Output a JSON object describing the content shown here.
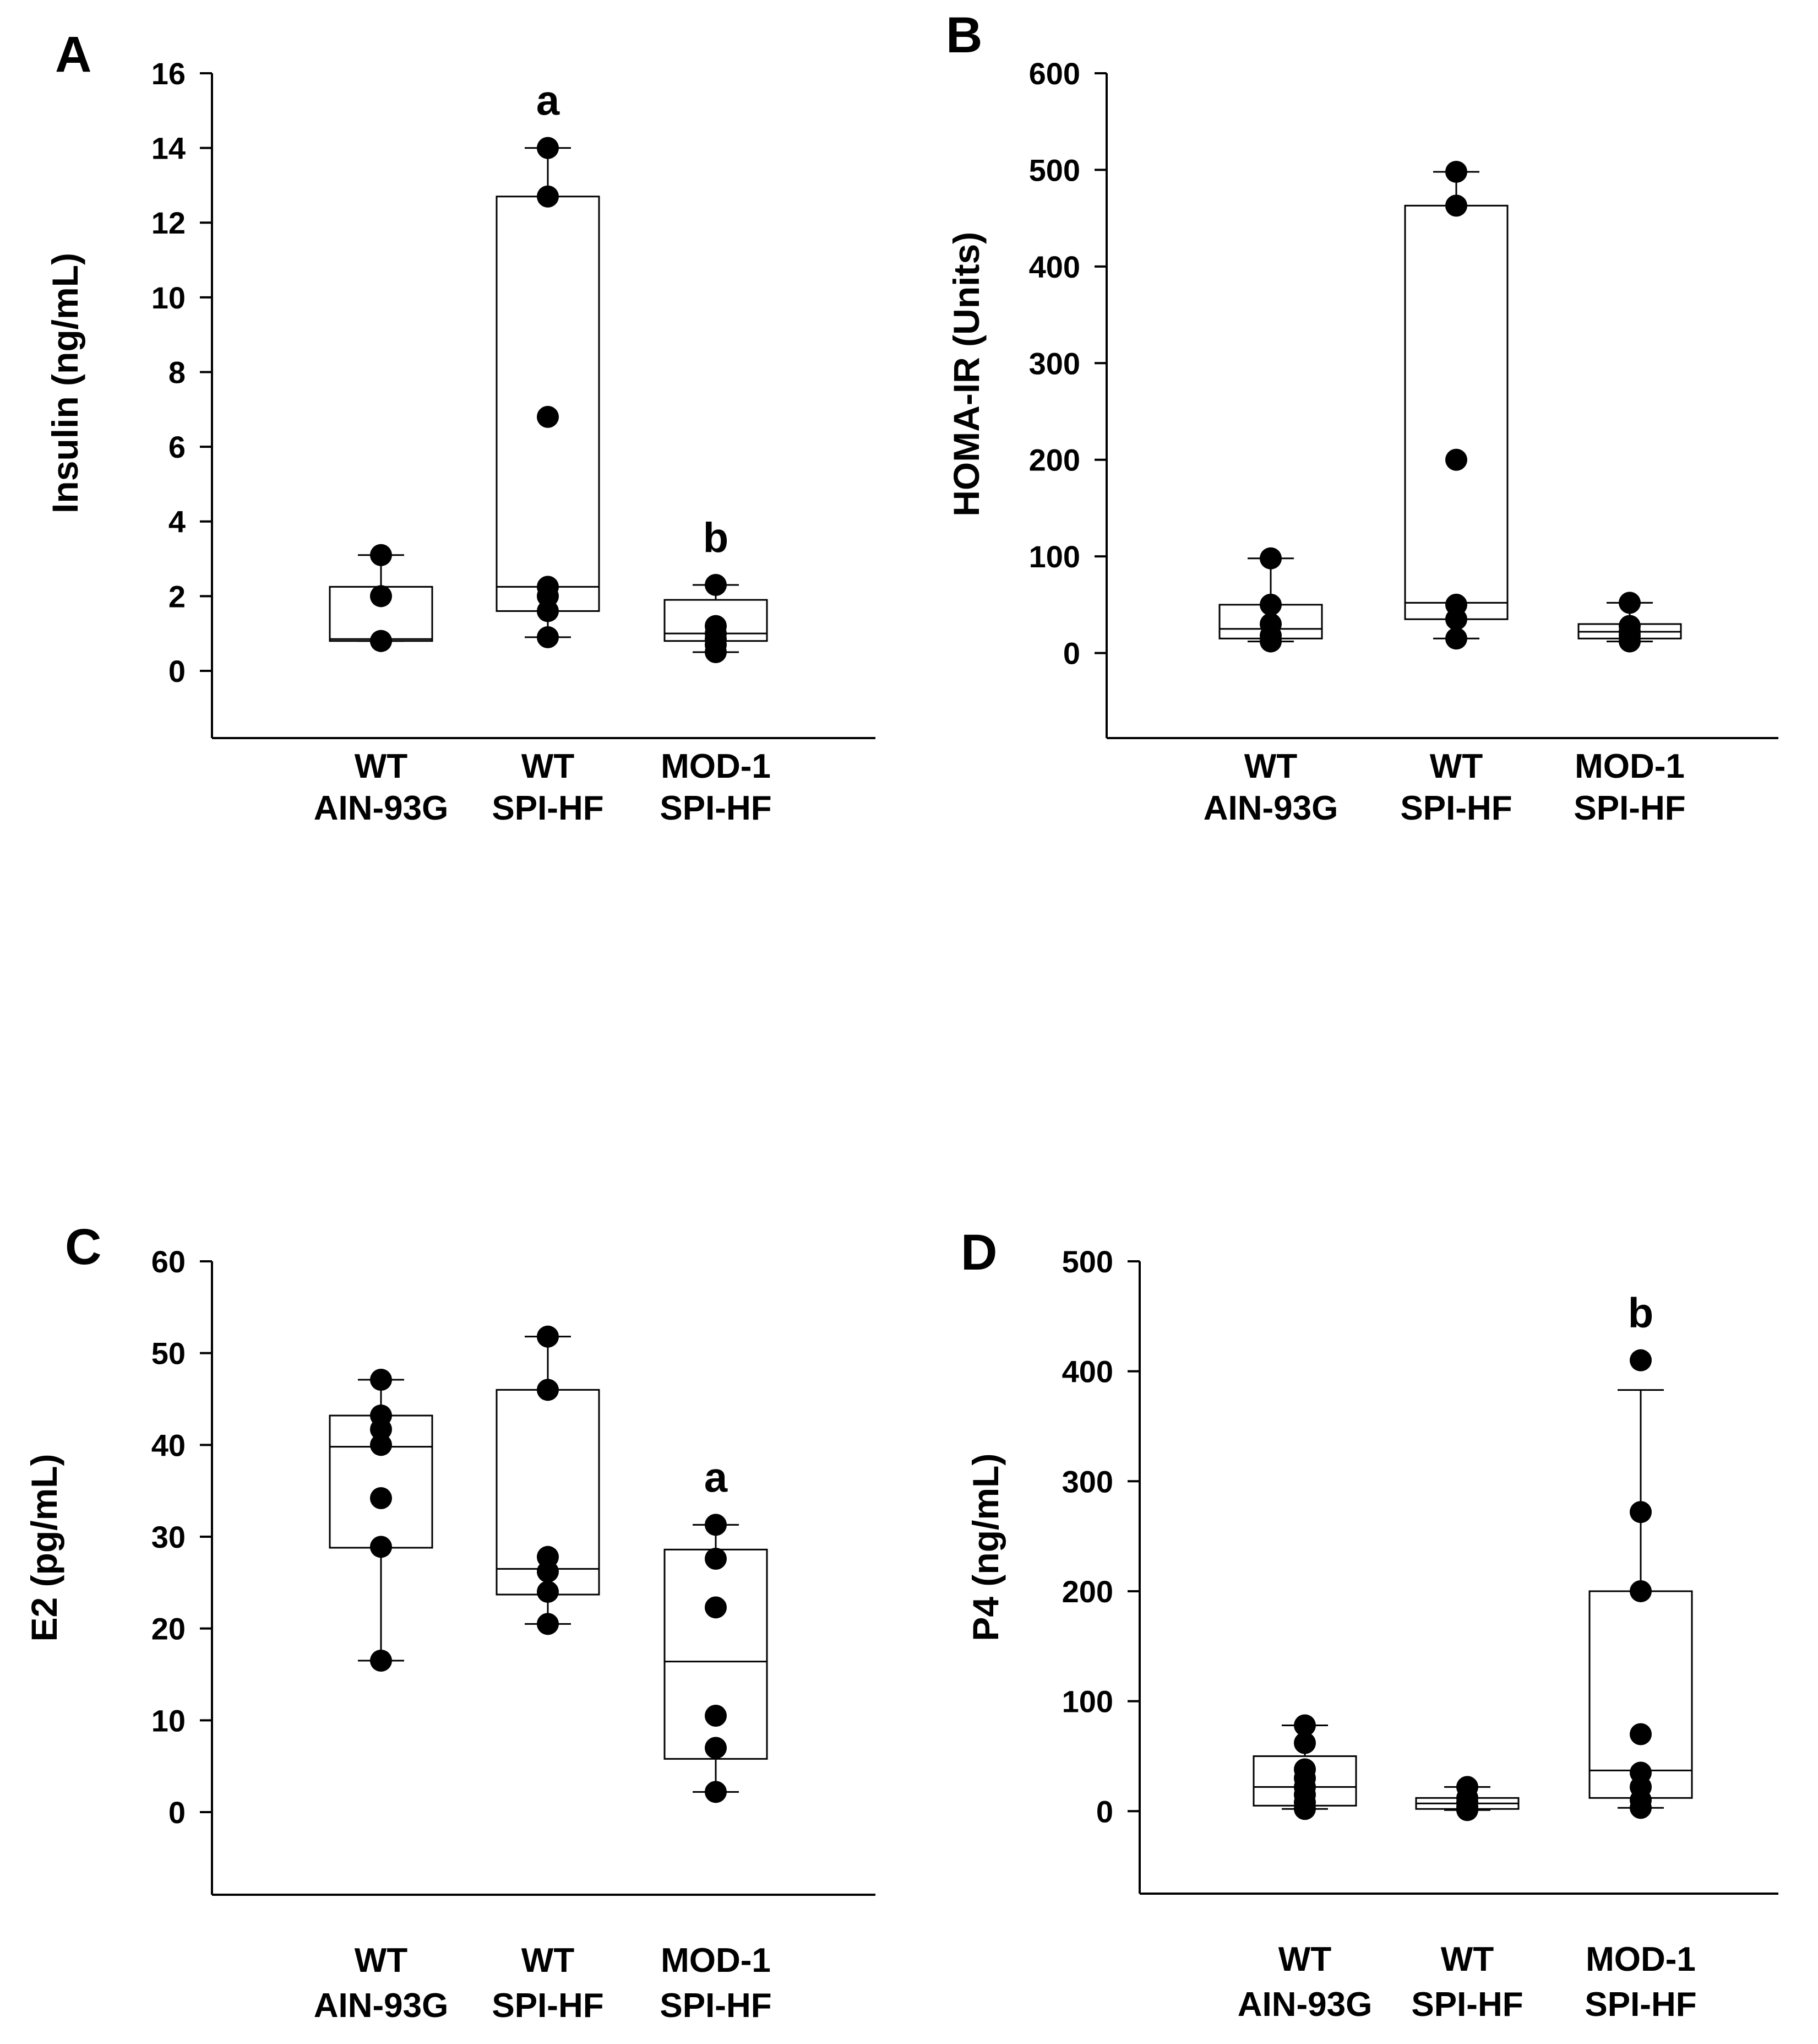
{
  "chart_data": [
    {
      "panel": "A",
      "type": "box",
      "ylabel": "Insulin (ng/mL)",
      "ylim": [
        -1.8,
        16
      ],
      "yticks": [
        0,
        2,
        4,
        6,
        8,
        10,
        12,
        14,
        16
      ],
      "groups": [
        {
          "line1": "WT",
          "line2": "AIN-93G",
          "points": [
            0.8,
            0.8,
            2.0,
            3.1
          ],
          "q1": 0.8,
          "median": 0.85,
          "q3": 2.25,
          "whisker_low": 0.8,
          "whisker_high": 3.1,
          "sig": ""
        },
        {
          "line1": "WT",
          "line2": "SPI-HF",
          "points": [
            0.9,
            1.6,
            2.0,
            2.25,
            6.8,
            12.7,
            14.0
          ],
          "q1": 1.6,
          "median": 2.25,
          "q3": 12.7,
          "whisker_low": 0.9,
          "whisker_high": 14.0,
          "sig": "a"
        },
        {
          "line1": "MOD-1",
          "line2": "SPI-HF",
          "points": [
            0.5,
            0.7,
            0.85,
            1.0,
            1.2,
            2.3
          ],
          "q1": 0.8,
          "median": 1.0,
          "q3": 1.9,
          "whisker_low": 0.5,
          "whisker_high": 2.3,
          "sig": "b"
        }
      ]
    },
    {
      "panel": "B",
      "type": "box",
      "ylabel": "HOMA-IR (Units)",
      "ylim": [
        -88,
        600
      ],
      "yticks": [
        0,
        100,
        200,
        300,
        400,
        500,
        600
      ],
      "groups": [
        {
          "line1": "WT",
          "line2": "AIN-93G",
          "points": [
            12,
            18,
            30,
            50,
            98
          ],
          "q1": 15,
          "median": 25,
          "q3": 50,
          "whisker_low": 12,
          "whisker_high": 98,
          "sig": ""
        },
        {
          "line1": "WT",
          "line2": "SPI-HF",
          "points": [
            15,
            35,
            50,
            200,
            463,
            498
          ],
          "q1": 35,
          "median": 52,
          "q3": 463,
          "whisker_low": 15,
          "whisker_high": 498,
          "sig": ""
        },
        {
          "line1": "MOD-1",
          "line2": "SPI-HF",
          "points": [
            12,
            18,
            22,
            28,
            52
          ],
          "q1": 15,
          "median": 22,
          "q3": 30,
          "whisker_low": 12,
          "whisker_high": 52,
          "sig": ""
        }
      ]
    },
    {
      "panel": "C",
      "type": "box",
      "ylabel": "E2 (pg/mL)",
      "ylim": [
        -9,
        60
      ],
      "yticks": [
        0,
        10,
        20,
        30,
        40,
        50,
        60
      ],
      "groups": [
        {
          "line1": "WT",
          "line2": "AIN-93G",
          "points": [
            16.5,
            28.9,
            34.2,
            40.0,
            41.7,
            43.2,
            47.1
          ],
          "q1": 28.8,
          "median": 39.8,
          "q3": 43.2,
          "whisker_low": 16.5,
          "whisker_high": 47.1,
          "sig": ""
        },
        {
          "line1": "WT",
          "line2": "SPI-HF",
          "points": [
            20.5,
            24.0,
            26.2,
            27.8,
            46.0,
            51.8
          ],
          "q1": 23.7,
          "median": 26.5,
          "q3": 46.0,
          "whisker_low": 20.5,
          "whisker_high": 51.8,
          "sig": ""
        },
        {
          "line1": "MOD-1",
          "line2": "SPI-HF",
          "points": [
            2.2,
            7.0,
            10.5,
            22.3,
            27.6,
            31.3
          ],
          "q1": 5.8,
          "median": 16.4,
          "q3": 28.6,
          "whisker_low": 2.2,
          "whisker_high": 31.3,
          "sig": "a"
        }
      ]
    },
    {
      "panel": "D",
      "type": "box",
      "ylabel": "P4 (ng/mL)",
      "ylim": [
        -75,
        500
      ],
      "yticks": [
        0,
        100,
        200,
        300,
        400,
        500
      ],
      "groups": [
        {
          "line1": "WT",
          "line2": "AIN-93G",
          "points": [
            2,
            8,
            15,
            22,
            30,
            38,
            62,
            78
          ],
          "q1": 5,
          "median": 22,
          "q3": 50,
          "whisker_low": 2,
          "whisker_high": 78,
          "sig": ""
        },
        {
          "line1": "WT",
          "line2": "SPI-HF",
          "points": [
            1,
            4,
            8,
            12,
            22
          ],
          "q1": 2,
          "median": 7,
          "q3": 12,
          "whisker_low": 1,
          "whisker_high": 22,
          "sig": ""
        },
        {
          "line1": "MOD-1",
          "line2": "SPI-HF",
          "points": [
            3,
            10,
            22,
            35,
            70,
            200,
            272,
            410
          ],
          "q1": 12,
          "median": 37,
          "q3": 200,
          "whisker_low": 3,
          "whisker_high": 383,
          "sig": "b"
        }
      ]
    }
  ]
}
